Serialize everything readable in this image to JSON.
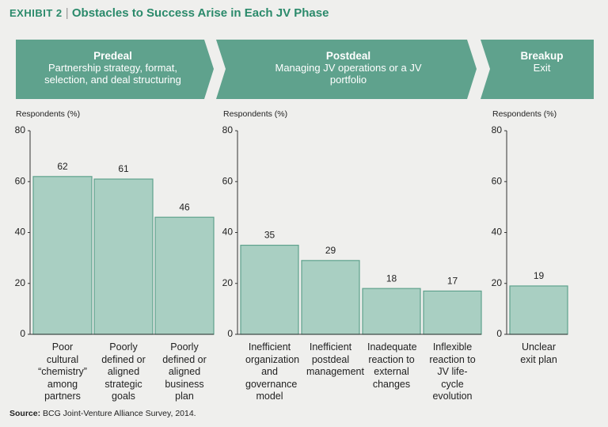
{
  "header": {
    "exhibit": "EXHIBIT 2",
    "title": "Obstacles to Success Arise in Each JV Phase"
  },
  "chart_data": [
    {
      "type": "bar",
      "phase": "Predeal",
      "phase_subtitle": "Partnership strategy, format, selection, and deal structuring",
      "y_label": "Respondents (%)",
      "categories": [
        "Poor cultural “chemistry” among partners",
        "Poorly defined or aligned strategic goals",
        "Poorly defined or aligned business plan"
      ],
      "values": [
        62,
        61,
        46
      ],
      "color": "#a9cfc2",
      "ylim": [
        0,
        80
      ],
      "yticks": [
        0,
        20,
        40,
        60,
        80
      ]
    },
    {
      "type": "bar",
      "phase": "Postdeal",
      "phase_subtitle": "Managing JV operations or a JV portfolio",
      "y_label": "Respondents (%)",
      "categories": [
        "Inefficient organization and governance model",
        "Inefficient postdeal management",
        "Inadequate reaction to external changes",
        "Inflexible reaction to JV life-cycle evolution"
      ],
      "values": [
        35,
        29,
        18,
        17
      ],
      "color": "#a9cfc2",
      "ylim": [
        0,
        80
      ],
      "yticks": [
        0,
        20,
        40,
        60,
        80
      ]
    },
    {
      "type": "bar",
      "phase": "Breakup",
      "phase_subtitle": "Exit",
      "y_label": "Respondents (%)",
      "categories": [
        "Unclear exit plan"
      ],
      "values": [
        19
      ],
      "color": "#a9cfc2",
      "ylim": [
        0,
        80
      ],
      "yticks": [
        0,
        20,
        40,
        60,
        80
      ]
    }
  ],
  "source": {
    "label": "Source:",
    "text": "BCG Joint-Venture Alliance Survey, 2014."
  }
}
